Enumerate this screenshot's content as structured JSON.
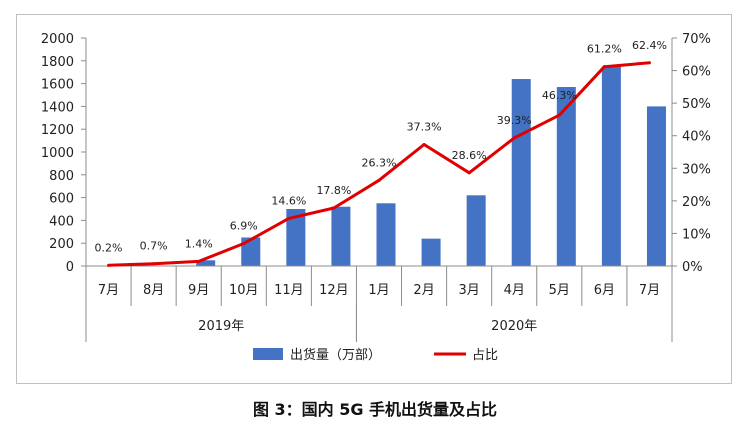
{
  "chart_data": {
    "type": "bar",
    "title": "图 3：国内 5G 手机出货量及占比",
    "categories": [
      "7月",
      "8月",
      "9月",
      "10月",
      "11月",
      "12月",
      "1月",
      "2月",
      "3月",
      "4月",
      "5月",
      "6月",
      "7月"
    ],
    "year_groups": [
      {
        "label": "2019年",
        "start": 0,
        "end": 5
      },
      {
        "label": "2020年",
        "start": 6,
        "end": 12
      }
    ],
    "series": [
      {
        "name": "出货量（万部）",
        "type": "bar",
        "axis": "left",
        "color": "#4472c4",
        "values": [
          0,
          0,
          50,
          250,
          500,
          520,
          550,
          240,
          620,
          1640,
          1570,
          1750,
          1400
        ]
      },
      {
        "name": "占比",
        "type": "line",
        "axis": "right",
        "color": "#e00000",
        "values": [
          0.2,
          0.7,
          1.4,
          6.9,
          14.6,
          17.8,
          26.3,
          37.3,
          28.6,
          39.3,
          46.3,
          61.2,
          62.4
        ],
        "labels": [
          "0.2%",
          "0.7%",
          "1.4%",
          "6.9%",
          "14.6%",
          "17.8%",
          "26.3%",
          "37.3%",
          "28.6%",
          "39.3%",
          "46.3%",
          "61.2%",
          "62.4%"
        ]
      }
    ],
    "y_left": {
      "min": 0,
      "max": 2000,
      "step": 200,
      "ticks": [
        "0",
        "200",
        "400",
        "600",
        "800",
        "1000",
        "1200",
        "1400",
        "1600",
        "1800",
        "2000"
      ]
    },
    "y_right": {
      "min": 0,
      "max": 70,
      "step": 10,
      "ticks": [
        "0%",
        "10%",
        "20%",
        "30%",
        "40%",
        "50%",
        "60%",
        "70%"
      ]
    },
    "legend": {
      "position": "bottom",
      "items": [
        "出货量（万部）",
        "占比"
      ]
    }
  }
}
